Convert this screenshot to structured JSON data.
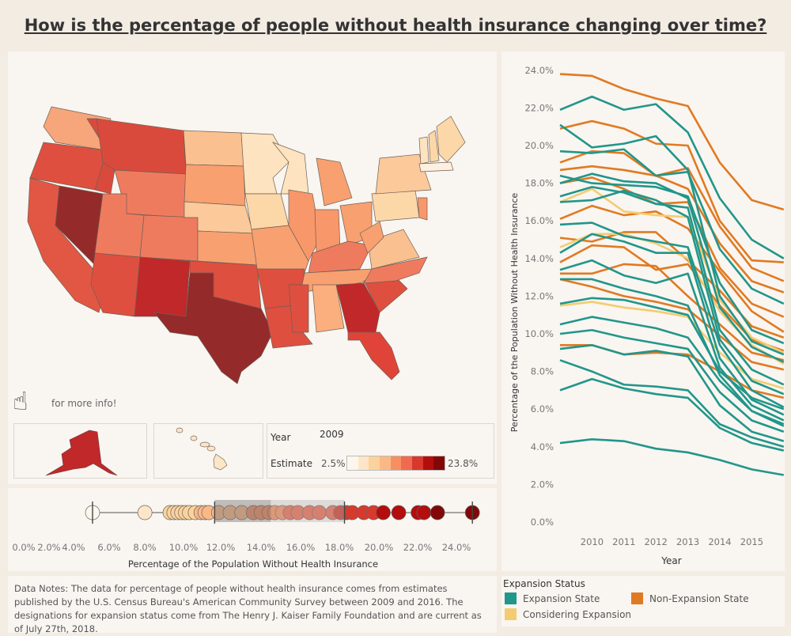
{
  "title": "How is the percentage of people without health insurance changing over time?",
  "info_hint": "for more info!",
  "colors": {
    "scale": [
      "#fdf6ec",
      "#fde6c8",
      "#fcd29c",
      "#fbb887",
      "#f88f61",
      "#ef6a50",
      "#d8392c",
      "#b30d0d",
      "#820808"
    ],
    "expansion": "#21968a",
    "non_expansion": "#e07a22",
    "considering": "#f3cc72"
  },
  "map_legend": {
    "year_label": "Year",
    "year": "2009",
    "estimate_label": "Estimate",
    "min": "2.5%",
    "max": "23.8%"
  },
  "map_states": {
    "WA": "#f7a57a",
    "OR": "#de4f3f",
    "CA": "#e15743",
    "NV": "#952a2a",
    "ID": "#d94a3d",
    "MT": "#d94a3d",
    "WY": "#ef7b5f",
    "UT": "#ef7b5f",
    "AZ": "#de4f3f",
    "CO": "#ef7b5f",
    "NM": "#c0282a",
    "ND": "#fbc08f",
    "SD": "#f8a06f",
    "NE": "#fcc99a",
    "KS": "#f8a070",
    "OK": "#de4f3f",
    "TX": "#952a2a",
    "MN": "#fde3bf",
    "IA": "#fcd7a8",
    "MO": "#f8a070",
    "AR": "#de4f3f",
    "LA": "#de4f3f",
    "WI": "#fde3bf",
    "IL": "#f8976a",
    "MI": "#f8a070",
    "IN": "#f8976a",
    "OH": "#f8a070",
    "KY": "#ef7b5f",
    "TN": "#f8a070",
    "MS": "#de4f3f",
    "AL": "#fbaf7e",
    "GA": "#c0282a",
    "FL": "#e04438",
    "SC": "#de4f3f",
    "NC": "#ef7b5f",
    "VA": "#fbc08f",
    "WV": "#f8a070",
    "PA": "#fcd7a8",
    "NY": "#fcc99a",
    "NJ": "#f8976a",
    "ME": "#fcd7a8",
    "VT": "#fde3bf",
    "NH": "#fcd7a8",
    "MA": "#fdf0e0",
    "AK": "#c0282a",
    "HI": "#fde6c8"
  },
  "chart_data": [
    {
      "type": "scatter",
      "xlabel": "Percentage of the Population Without Health Insurance",
      "x_ticks": [
        "0.0%",
        "2.0%",
        "4.0%",
        "6.0%",
        "8.0%",
        "10.0%",
        "12.0%",
        "14.0%",
        "16.0%",
        "18.0%",
        "20.0%",
        "22.0%",
        "24.0%"
      ],
      "values": [
        4.2,
        6.9,
        8.2,
        8.4,
        8.6,
        8.8,
        9.0,
        9.2,
        9.5,
        9.8,
        10.0,
        10.2,
        10.7,
        11.3,
        11.9,
        12.5,
        12.9,
        13.3,
        13.6,
        14.0,
        14.4,
        14.8,
        15.4,
        15.9,
        16.6,
        17.0,
        17.3,
        17.6,
        18.2,
        18.7,
        19.2,
        20.0,
        21.0,
        21.3,
        22.0,
        23.8
      ],
      "box": {
        "min": 4.2,
        "q1": 10.5,
        "median": 13.4,
        "q3": 17.2,
        "max": 23.8
      }
    },
    {
      "type": "line",
      "xlabel": "Year",
      "ylabel": "Percentage of the Population Without Health Insurance",
      "x": [
        2009,
        2010,
        2011,
        2012,
        2013,
        2014,
        2015,
        2016
      ],
      "x_ticks": [
        "2010",
        "2011",
        "2012",
        "2013",
        "2014",
        "2015"
      ],
      "y_ticks": [
        "0.0%",
        "2.0%",
        "4.0%",
        "6.0%",
        "8.0%",
        "10.0%",
        "12.0%",
        "14.0%",
        "16.0%",
        "18.0%",
        "20.0%",
        "22.0%",
        "24.0%"
      ],
      "ylim": [
        0,
        24
      ],
      "legend": {
        "title": "Expansion Status",
        "items": [
          "Expansion State",
          "Non-Expansion State",
          "Considering Expansion"
        ]
      },
      "series": [
        {
          "status": "Non-Expansion State",
          "values": [
            23.8,
            23.7,
            23.0,
            22.5,
            22.1,
            19.1,
            17.1,
            16.6
          ]
        },
        {
          "status": "Non-Expansion State",
          "values": [
            20.9,
            21.3,
            20.9,
            20.1,
            20.0,
            16.0,
            13.9,
            13.8
          ]
        },
        {
          "status": "Non-Expansion State",
          "values": [
            19.1,
            19.7,
            19.6,
            18.4,
            18.8,
            15.7,
            13.5,
            12.8
          ]
        },
        {
          "status": "Non-Expansion State",
          "values": [
            18.7,
            18.9,
            18.7,
            18.4,
            17.7,
            14.8,
            12.8,
            12.2
          ]
        },
        {
          "status": "Non-Expansion State",
          "values": [
            18.0,
            18.3,
            17.7,
            16.9,
            17.0,
            13.5,
            11.6,
            10.9
          ]
        },
        {
          "status": "Non-Expansion State",
          "values": [
            16.1,
            16.8,
            16.3,
            16.5,
            15.6,
            13.3,
            11.2,
            10.1
          ]
        },
        {
          "status": "Non-Expansion State",
          "values": [
            15.1,
            14.9,
            15.4,
            15.4,
            13.9,
            12.3,
            10.4,
            9.8
          ]
        },
        {
          "status": "Non-Expansion State",
          "values": [
            13.8,
            14.7,
            14.6,
            13.4,
            13.7,
            11.5,
            9.7,
            9.1
          ]
        },
        {
          "status": "Non-Expansion State",
          "values": [
            13.2,
            13.2,
            13.7,
            13.6,
            12.0,
            10.5,
            9.0,
            8.6
          ]
        },
        {
          "status": "Non-Expansion State",
          "values": [
            12.9,
            12.5,
            12.0,
            11.7,
            11.3,
            9.9,
            8.5,
            8.1
          ]
        },
        {
          "status": "Non-Expansion State",
          "values": [
            9.4,
            9.4,
            8.9,
            9.0,
            8.9,
            8.0,
            7.0,
            6.6
          ]
        },
        {
          "status": "Considering Expansion",
          "values": [
            17.0,
            17.7,
            16.5,
            16.3,
            16.2,
            11.8,
            9.8,
            9.0
          ]
        },
        {
          "status": "Considering Expansion",
          "values": [
            14.6,
            15.3,
            15.3,
            14.8,
            14.0,
            11.2,
            9.4,
            8.4
          ]
        },
        {
          "status": "Considering Expansion",
          "values": [
            11.5,
            11.7,
            11.4,
            11.2,
            10.9,
            9.0,
            7.6,
            7.1
          ]
        },
        {
          "status": "Expansion State",
          "values": [
            21.9,
            22.6,
            21.9,
            22.2,
            20.7,
            17.2,
            15.0,
            14.0
          ]
        },
        {
          "status": "Expansion State",
          "values": [
            21.1,
            19.9,
            20.1,
            20.5,
            18.7,
            12.0,
            9.6,
            8.9
          ]
        },
        {
          "status": "Expansion State",
          "values": [
            19.7,
            19.6,
            19.8,
            18.4,
            18.6,
            14.5,
            12.4,
            11.6
          ]
        },
        {
          "status": "Expansion State",
          "values": [
            18.4,
            18.0,
            17.9,
            17.8,
            17.3,
            12.7,
            10.2,
            9.5
          ]
        },
        {
          "status": "Expansion State",
          "values": [
            18.0,
            18.5,
            18.1,
            18.0,
            17.2,
            11.4,
            9.3,
            8.5
          ]
        },
        {
          "status": "Expansion State",
          "values": [
            17.3,
            17.8,
            17.5,
            16.9,
            16.7,
            10.2,
            8.1,
            7.3
          ]
        },
        {
          "status": "Expansion State",
          "values": [
            17.0,
            17.1,
            17.6,
            17.1,
            16.2,
            9.7,
            7.5,
            6.8
          ]
        },
        {
          "status": "Expansion State",
          "values": [
            15.8,
            15.9,
            15.2,
            14.9,
            14.6,
            9.4,
            7.0,
            6.1
          ]
        },
        {
          "status": "Expansion State",
          "values": [
            14.3,
            15.3,
            14.9,
            14.3,
            14.3,
            8.7,
            6.5,
            5.7
          ]
        },
        {
          "status": "Expansion State",
          "values": [
            13.4,
            13.9,
            13.1,
            12.7,
            13.2,
            8.2,
            6.2,
            5.4
          ]
        },
        {
          "status": "Expansion State",
          "values": [
            12.9,
            12.9,
            12.4,
            12.0,
            11.5,
            7.8,
            5.9,
            5.2
          ]
        },
        {
          "status": "Expansion State",
          "values": [
            11.6,
            11.9,
            11.8,
            11.4,
            11.0,
            8.0,
            6.6,
            6.0
          ]
        },
        {
          "status": "Expansion State",
          "values": [
            10.5,
            10.9,
            10.6,
            10.3,
            9.8,
            7.5,
            5.9,
            5.1
          ]
        },
        {
          "status": "Expansion State",
          "values": [
            10.0,
            10.2,
            9.8,
            9.5,
            9.2,
            6.9,
            5.4,
            4.8
          ]
        },
        {
          "status": "Expansion State",
          "values": [
            9.2,
            9.4,
            8.9,
            9.1,
            8.8,
            6.2,
            4.8,
            4.3
          ]
        },
        {
          "status": "Expansion State",
          "values": [
            8.6,
            8.0,
            7.3,
            7.2,
            7.0,
            5.2,
            4.5,
            4.0
          ]
        },
        {
          "status": "Expansion State",
          "values": [
            7.0,
            7.6,
            7.1,
            6.8,
            6.6,
            5.0,
            4.2,
            3.8
          ]
        },
        {
          "status": "Expansion State",
          "values": [
            4.2,
            4.4,
            4.3,
            3.9,
            3.7,
            3.3,
            2.8,
            2.5
          ]
        }
      ]
    }
  ],
  "notes": "Data Notes: The data for percentage of people without health insurance comes from estimates published by the U.S. Census Bureau's American Community Survey between 2009 and 2016. The designations for expansion status come from The Henry J. Kaiser Family Foundation and are current as of July 27th, 2018."
}
